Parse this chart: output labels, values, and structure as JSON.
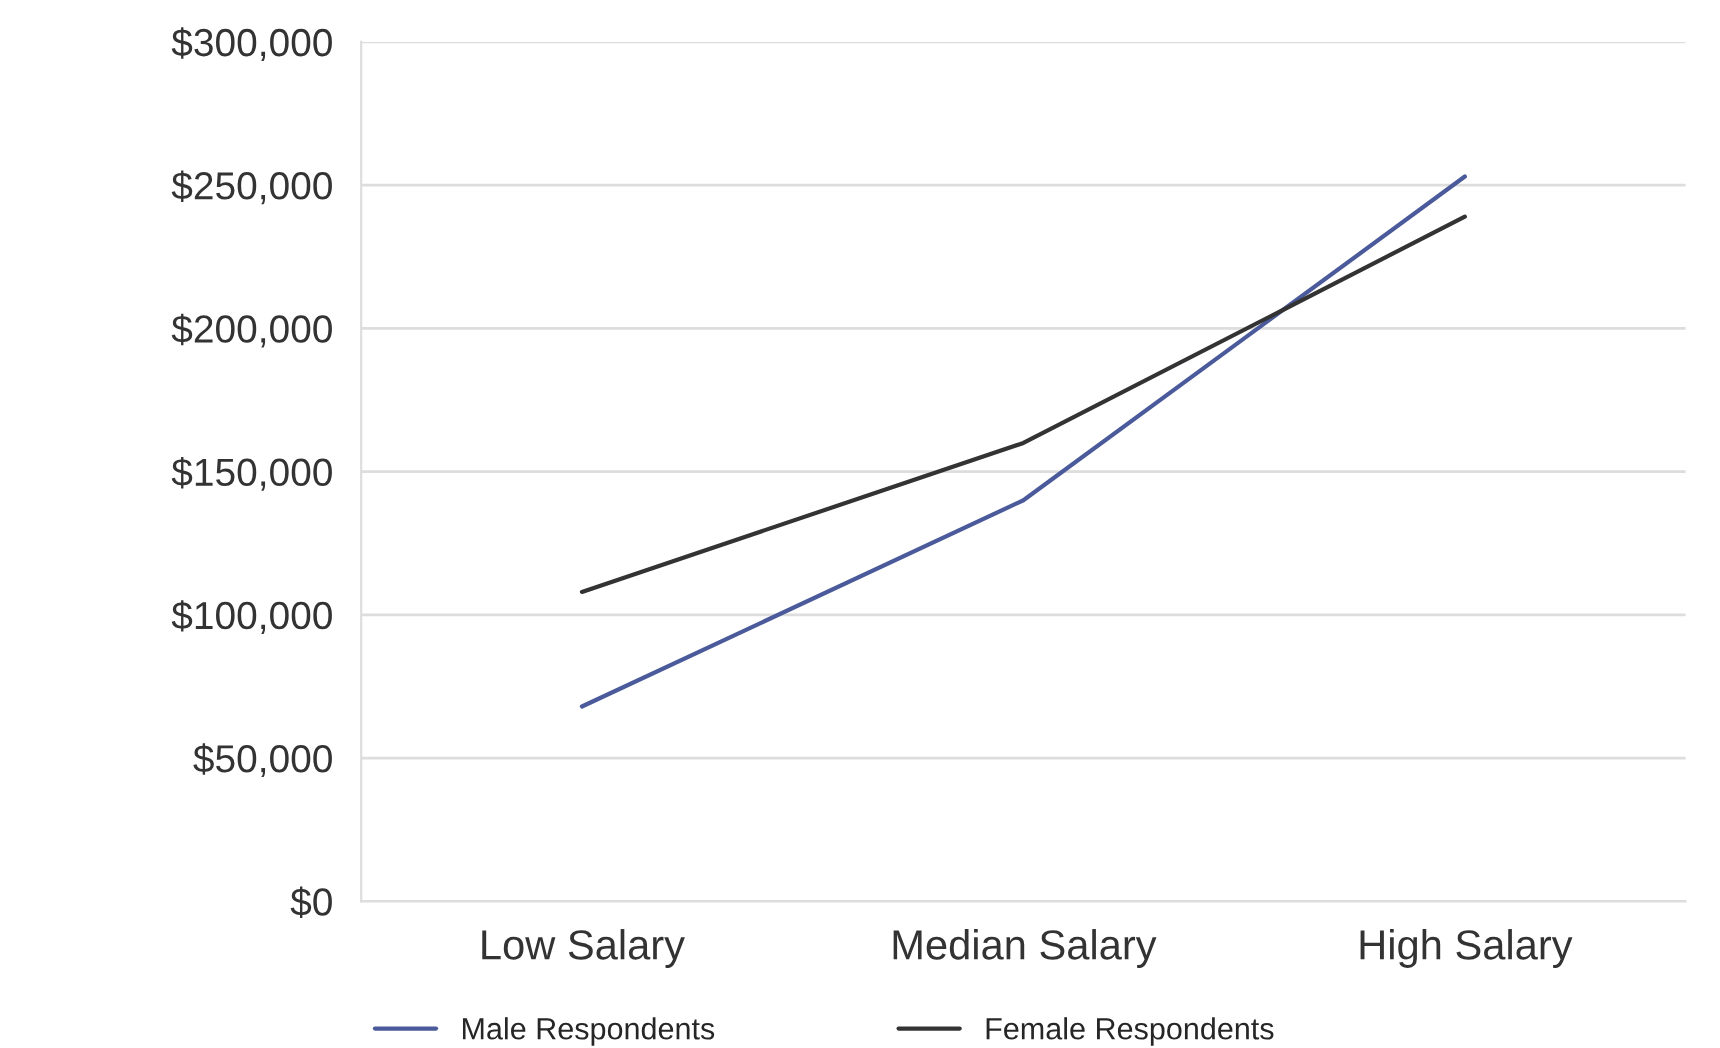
{
  "chart_data": {
    "type": "line",
    "categories": [
      "Low Salary",
      "Median Salary",
      "High Salary"
    ],
    "series": [
      {
        "name": "Male Respondents",
        "color": "#4a5a9a",
        "values": [
          68000,
          140000,
          253000
        ]
      },
      {
        "name": "Female Respondents",
        "color": "#333333",
        "values": [
          108000,
          160000,
          239000
        ]
      }
    ],
    "ylim": [
      0,
      300000
    ],
    "yticks": [
      {
        "value": 0,
        "label": "$0"
      },
      {
        "value": 50000,
        "label": "$50,000"
      },
      {
        "value": 100000,
        "label": "$100,000"
      },
      {
        "value": 150000,
        "label": "$150,000"
      },
      {
        "value": 200000,
        "label": "$200,000"
      },
      {
        "value": 250000,
        "label": "$250,000"
      },
      {
        "value": 300000,
        "label": "$300,000"
      }
    ],
    "grid": "y",
    "legend": "bottom",
    "marker": "none",
    "line_style": "solid"
  }
}
